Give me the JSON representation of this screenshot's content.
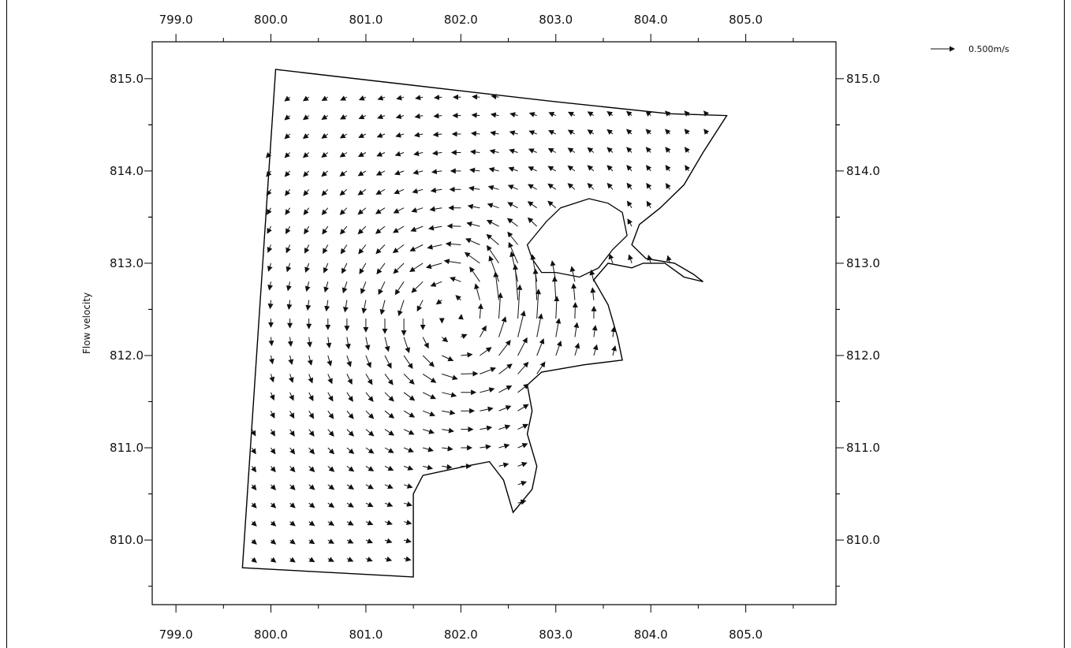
{
  "chart_data": {
    "type": "vector-field",
    "ylabel": "Flow velocity",
    "xlabel": "",
    "title": "",
    "x_ticks": [
      "799.0",
      "800.0",
      "801.0",
      "802.0",
      "803.0",
      "804.0",
      "805.0"
    ],
    "y_ticks": [
      "815.0",
      "814.0",
      "813.0",
      "812.0",
      "811.0",
      "810.0"
    ],
    "xlim": [
      798.75,
      805.95
    ],
    "ylim": [
      809.3,
      815.4
    ],
    "grid": false,
    "legend": {
      "placement": "top-right",
      "label": "0.500m/s",
      "reference_speed": 0.5,
      "units": "m/s"
    },
    "boundary": [
      [
        800.05,
        815.1
      ],
      [
        803.0,
        814.75
      ],
      [
        804.2,
        814.62
      ],
      [
        804.8,
        814.6
      ],
      [
        804.55,
        814.2
      ],
      [
        804.35,
        813.85
      ],
      [
        804.1,
        813.6
      ],
      [
        803.88,
        813.42
      ],
      [
        803.8,
        813.2
      ],
      [
        803.95,
        813.05
      ],
      [
        804.25,
        813.0
      ],
      [
        804.45,
        812.88
      ],
      [
        804.55,
        812.8
      ],
      [
        804.35,
        812.85
      ],
      [
        804.15,
        813.0
      ],
      [
        803.92,
        813.0
      ],
      [
        803.8,
        812.95
      ],
      [
        803.55,
        813.0
      ],
      [
        803.4,
        812.82
      ],
      [
        803.55,
        812.55
      ],
      [
        803.65,
        812.2
      ],
      [
        803.7,
        811.95
      ],
      [
        803.3,
        811.9
      ],
      [
        802.85,
        811.82
      ],
      [
        802.7,
        811.68
      ],
      [
        802.75,
        811.4
      ],
      [
        802.7,
        811.15
      ],
      [
        802.8,
        810.8
      ],
      [
        802.75,
        810.55
      ],
      [
        802.55,
        810.3
      ],
      [
        802.45,
        810.65
      ],
      [
        802.3,
        810.85
      ],
      [
        802.05,
        810.8
      ],
      [
        801.6,
        810.7
      ],
      [
        801.5,
        810.5
      ],
      [
        801.5,
        809.6
      ],
      [
        799.7,
        809.7
      ],
      [
        800.05,
        815.1
      ]
    ],
    "island": [
      [
        802.7,
        813.2
      ],
      [
        802.9,
        813.45
      ],
      [
        803.05,
        813.6
      ],
      [
        803.35,
        813.7
      ],
      [
        803.55,
        813.65
      ],
      [
        803.7,
        813.55
      ],
      [
        803.75,
        813.3
      ],
      [
        803.6,
        813.15
      ],
      [
        803.45,
        812.95
      ],
      [
        803.25,
        812.85
      ],
      [
        803.0,
        812.9
      ],
      [
        802.85,
        812.9
      ],
      [
        802.75,
        813.05
      ],
      [
        802.7,
        813.2
      ]
    ],
    "vector_field": {
      "center": [
        802.0,
        812.4
      ],
      "core_radius": 0.6,
      "core_speed": 0.35,
      "outer_speed": 0.1,
      "jet_center": [
        802.6,
        812.6
      ],
      "jet_peak_speed": 0.42,
      "grid_spacing_x": 0.2,
      "grid_spacing_y": 0.2
    }
  }
}
